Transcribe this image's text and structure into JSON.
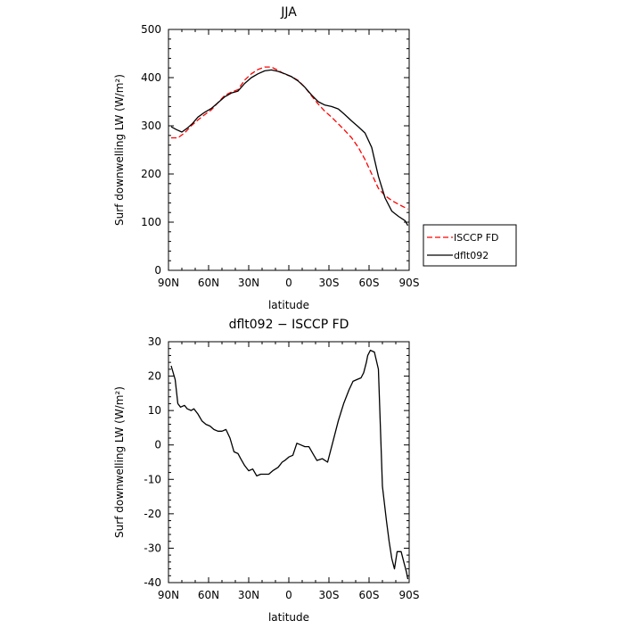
{
  "chart_data": [
    {
      "type": "line",
      "title": "JJA",
      "xlabel": "latitude",
      "ylabel": "Surf downwelling LW (W/m²)",
      "ylim": [
        0,
        500
      ],
      "yticks": [
        0,
        100,
        200,
        300,
        400,
        500
      ],
      "xlim": [
        90,
        -90
      ],
      "xticks": [
        90,
        60,
        30,
        0,
        -30,
        -60,
        -90
      ],
      "xtick_labels": [
        "90N",
        "60N",
        "30N",
        "0",
        "30S",
        "60S",
        "90S"
      ],
      "legend_position": "right",
      "series": [
        {
          "name": "ISCCP FD",
          "color": "#ff0000",
          "dash": "dashed",
          "x": [
            88,
            83,
            78,
            73,
            68,
            63,
            58,
            53,
            48,
            43,
            38,
            33,
            28,
            23,
            18,
            13,
            8,
            3,
            -2,
            -7,
            -12,
            -17,
            -22,
            -27,
            -32,
            -37,
            -42,
            -47,
            -52,
            -57,
            -62,
            -67,
            -72,
            -77,
            -82,
            -87,
            -89
          ],
          "values": [
            275,
            275,
            285,
            300,
            312,
            323,
            333,
            348,
            363,
            370,
            375,
            395,
            408,
            417,
            422,
            422,
            415,
            407,
            402,
            394,
            380,
            362,
            345,
            330,
            318,
            304,
            290,
            275,
            255,
            230,
            200,
            170,
            155,
            145,
            137,
            130,
            127
          ]
        },
        {
          "name": "dflt092",
          "color": "#000000",
          "dash": "solid",
          "x": [
            88,
            84,
            80,
            76,
            72,
            68,
            63,
            58,
            53,
            48,
            43,
            38,
            33,
            28,
            23,
            18,
            13,
            8,
            3,
            -2,
            -7,
            -12,
            -17,
            -22,
            -27,
            -32,
            -37,
            -42,
            -47,
            -52,
            -57,
            -62,
            -67,
            -72,
            -77,
            -82,
            -87,
            -89
          ],
          "values": [
            298,
            292,
            287,
            295,
            305,
            318,
            328,
            336,
            348,
            360,
            368,
            372,
            388,
            400,
            408,
            414,
            416,
            413,
            408,
            402,
            393,
            380,
            364,
            350,
            343,
            340,
            335,
            323,
            310,
            298,
            285,
            255,
            195,
            150,
            123,
            112,
            103,
            93
          ]
        }
      ]
    },
    {
      "type": "line",
      "title": "dflt092 − ISCCP FD",
      "xlabel": "latitude",
      "ylabel": "Surf downwelling LW (W/m²)",
      "ylim": [
        -40,
        30
      ],
      "yticks": [
        -40,
        -30,
        -20,
        -10,
        0,
        10,
        20,
        30
      ],
      "xlim": [
        90,
        -90
      ],
      "xticks": [
        90,
        60,
        30,
        0,
        -30,
        -60,
        -90
      ],
      "xtick_labels": [
        "90N",
        "60N",
        "30N",
        "0",
        "30S",
        "60S",
        "90S"
      ],
      "series": [
        {
          "color": "#000000",
          "dash": "solid",
          "x": [
            88,
            85,
            83,
            81,
            78,
            76,
            73,
            71,
            68,
            65,
            62,
            59,
            56,
            53,
            50,
            47,
            44,
            41,
            38,
            36,
            33,
            30,
            27,
            24,
            21,
            18,
            15,
            12,
            8,
            5,
            3,
            0,
            -3,
            -6,
            -9,
            -12,
            -15,
            -18,
            -21,
            -25,
            -29,
            -33,
            -37,
            -41,
            -45,
            -48,
            -51,
            -54,
            -56,
            -58,
            -59,
            -61,
            -64,
            -67,
            -70,
            -73,
            -75,
            -77,
            -79,
            -81,
            -84,
            -86,
            -88,
            -89
          ],
          "values": [
            23,
            19,
            12,
            11,
            11.5,
            10.5,
            10,
            10.5,
            9,
            7,
            6,
            5.5,
            4.5,
            4,
            4,
            4.5,
            2,
            -2,
            -2.5,
            -4,
            -6,
            -7.5,
            -7,
            -9,
            -8.5,
            -8.5,
            -8.5,
            -7.5,
            -6.5,
            -5,
            -4.5,
            -3.5,
            -3,
            0.5,
            0,
            -0.5,
            -0.5,
            -2.5,
            -4.5,
            -4,
            -5,
            1,
            7,
            12,
            16,
            18.5,
            19,
            19.5,
            21,
            24,
            26,
            27.5,
            27,
            22,
            -12,
            -22,
            -28,
            -33,
            -36,
            -31,
            -31,
            -34,
            -37,
            -39
          ]
        }
      ]
    }
  ]
}
